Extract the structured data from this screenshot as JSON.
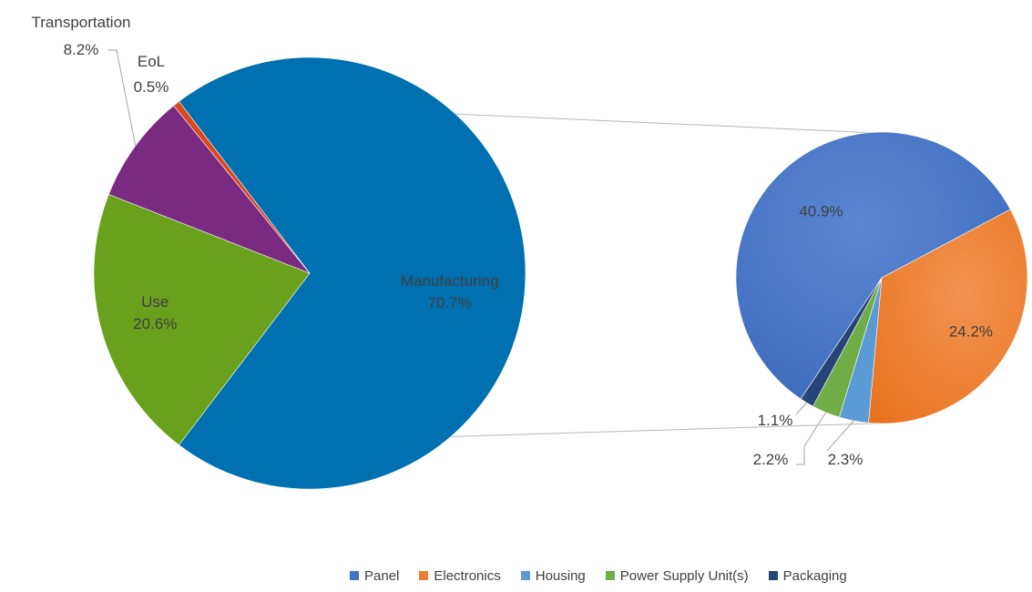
{
  "chart_data": [
    {
      "type": "pie",
      "categories": [
        "Manufacturing",
        "Use",
        "Transportation",
        "EoL"
      ],
      "values": [
        70.7,
        20.6,
        8.2,
        0.5
      ],
      "labels": [
        "70.7%",
        "20.6%",
        "8.2%",
        "0.5%"
      ],
      "colors": [
        "#0070b0",
        "#6aa11c",
        "#7b2a82",
        "#d9471b"
      ],
      "exploded_category": "Manufacturing"
    },
    {
      "type": "pie",
      "categories": [
        "Panel",
        "Electronics",
        "Housing",
        "Power Supply Unit(s)",
        "Packaging"
      ],
      "values": [
        40.9,
        24.2,
        2.3,
        2.2,
        1.1
      ],
      "labels": [
        "40.9%",
        "24.2%",
        "2.3%",
        "2.2%",
        "1.1%"
      ],
      "colors": [
        "#4472c4",
        "#ed7d31",
        "#5b9bd5",
        "#70ad47",
        "#264478"
      ],
      "legend": {
        "position": "bottom",
        "entries": [
          "Panel",
          "Electronics",
          "Housing",
          "Power Supply Unit(s)",
          "Packaging"
        ]
      }
    }
  ]
}
